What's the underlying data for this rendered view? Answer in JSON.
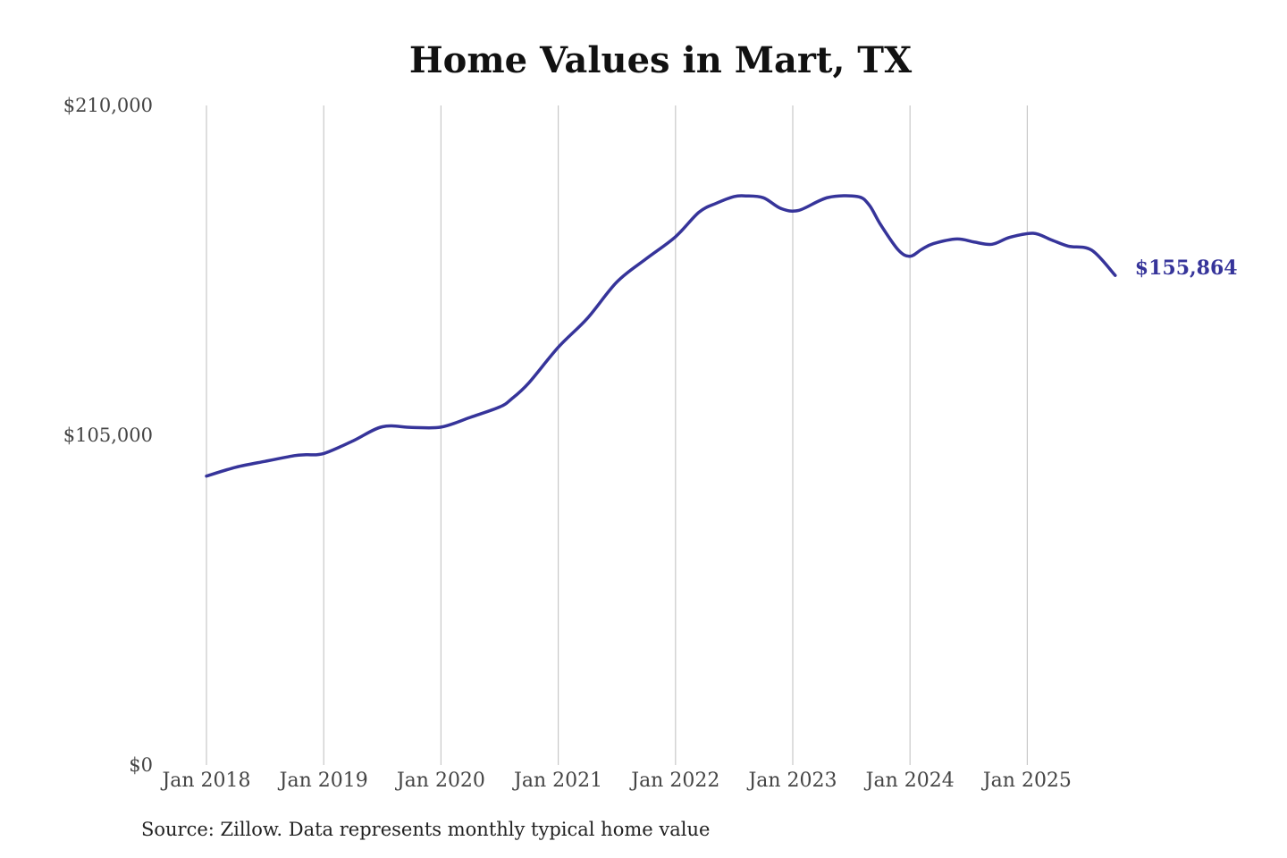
{
  "chart_data": {
    "type": "line",
    "title": "Home Values in Mart, TX",
    "source": "Source: Zillow. Data represents monthly typical home value",
    "xlabel": "",
    "ylabel": "",
    "ylim": [
      0,
      210000
    ],
    "yticks": [
      0,
      105000,
      210000
    ],
    "ytick_labels": [
      "$0",
      "$105,000",
      "$210,000"
    ],
    "xticks": [
      2018,
      2019,
      2020,
      2021,
      2022,
      2023,
      2024,
      2025
    ],
    "xtick_labels": [
      "Jan 2018",
      "Jan 2019",
      "Jan 2020",
      "Jan 2021",
      "Jan 2022",
      "Jan 2023",
      "Jan 2024",
      "Jan 2025"
    ],
    "grid": "vertical",
    "line_color": "#36349a",
    "end_label": "$155,864",
    "series": [
      {
        "name": "Typical home value",
        "x": [
          2018.0,
          2018.25,
          2018.5,
          2018.75,
          2018.85,
          2019.0,
          2019.25,
          2019.5,
          2019.75,
          2020.0,
          2020.25,
          2020.5,
          2020.6,
          2020.75,
          2021.0,
          2021.25,
          2021.5,
          2021.75,
          2022.0,
          2022.2,
          2022.35,
          2022.5,
          2022.6,
          2022.75,
          2022.9,
          2023.05,
          2023.3,
          2023.55,
          2023.65,
          2023.75,
          2023.9,
          2024.0,
          2024.1,
          2024.2,
          2024.4,
          2024.55,
          2024.7,
          2024.85,
          2025.05,
          2025.2,
          2025.35,
          2025.55,
          2025.75
        ],
        "values": [
          92000,
          94800,
          96700,
          98500,
          98800,
          99200,
          103200,
          107700,
          107500,
          107600,
          110700,
          114000,
          116500,
          121700,
          133000,
          142300,
          153800,
          161200,
          168200,
          176000,
          178900,
          181000,
          181200,
          180600,
          177200,
          176600,
          180700,
          181000,
          178400,
          172000,
          164000,
          162000,
          164200,
          166000,
          167500,
          166500,
          165800,
          168000,
          169300,
          167300,
          165200,
          163900,
          155864
        ]
      }
    ]
  }
}
